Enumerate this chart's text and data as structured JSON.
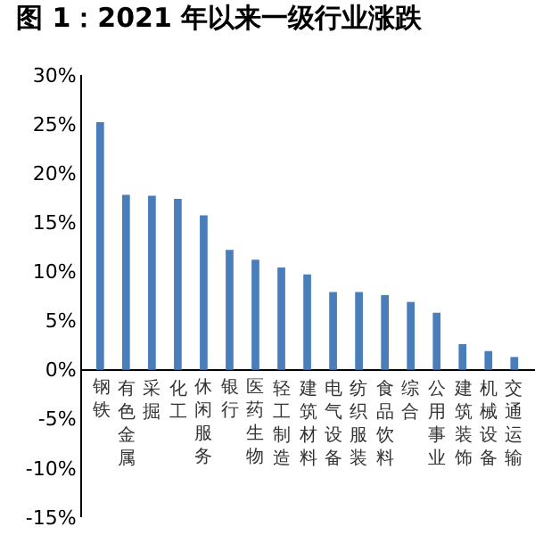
{
  "chart_data": {
    "type": "bar",
    "title": "图 1：2021 年以来一级行业涨跌",
    "categories": [
      "钢铁",
      "有色金属",
      "采掘",
      "化工",
      "休闲服务",
      "银行",
      "医药生物",
      "轻工制造",
      "建筑材料",
      "电气设备",
      "纺织服装",
      "食品饮料",
      "综合",
      "公用事业",
      "建筑装饰",
      "机械设备",
      "交通运输"
    ],
    "values": [
      25.2,
      17.8,
      17.7,
      17.4,
      15.7,
      12.2,
      11.2,
      10.4,
      9.7,
      7.9,
      7.9,
      7.6,
      6.9,
      5.8,
      2.6,
      1.9,
      1.3
    ],
    "color": "#4a7ebb",
    "ylim": [
      -15,
      30
    ],
    "yticks": [
      {
        "value": -15,
        "label": "-15%"
      },
      {
        "value": -10,
        "label": "-10%"
      },
      {
        "value": -5,
        "label": "-5%"
      },
      {
        "value": 0,
        "label": "0%"
      },
      {
        "value": 5,
        "label": "5%"
      },
      {
        "value": 10,
        "label": "10%"
      },
      {
        "value": 15,
        "label": "15%"
      },
      {
        "value": 20,
        "label": "20%"
      },
      {
        "value": 25,
        "label": "25%"
      },
      {
        "value": 30,
        "label": "30%"
      }
    ],
    "grid": false,
    "legend": false
  }
}
